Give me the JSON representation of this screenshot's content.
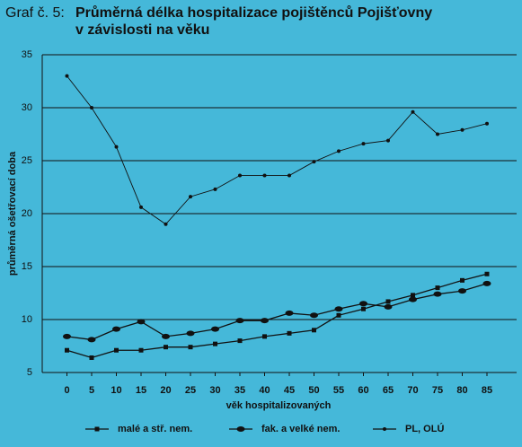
{
  "chart_data": {
    "type": "line",
    "label": "Graf č. 5:",
    "title": [
      "Průměrná délka hospitalizace pojištěnců Pojišťovny",
      "v závislosti na věku"
    ],
    "xlabel": "věk hospitalizovaných",
    "ylabel": "průměrná ošetřovací doba",
    "x": [
      0,
      5,
      10,
      15,
      20,
      25,
      30,
      35,
      40,
      45,
      50,
      55,
      60,
      65,
      70,
      75,
      80,
      85
    ],
    "xlim": [
      -5,
      91
    ],
    "xticks": [
      0,
      5,
      10,
      15,
      20,
      25,
      30,
      35,
      40,
      45,
      50,
      55,
      60,
      65,
      70,
      75,
      80,
      85
    ],
    "ylim": [
      5,
      35
    ],
    "yticks": [
      5,
      10,
      15,
      20,
      25,
      30,
      35
    ],
    "grid": true,
    "legend": "bottom",
    "series": [
      {
        "name": "malé a stř. nem.",
        "color": "#111111",
        "marker": "square",
        "values": [
          7.1,
          6.4,
          7.1,
          7.1,
          7.4,
          7.4,
          7.7,
          8.0,
          8.4,
          8.7,
          9.0,
          10.4,
          11.0,
          11.7,
          12.3,
          13.0,
          13.7,
          14.3
        ]
      },
      {
        "name": "fak. a velké nem.",
        "color": "#111111",
        "marker": "oval",
        "values": [
          8.4,
          8.1,
          9.1,
          9.8,
          8.4,
          8.7,
          9.1,
          9.9,
          9.9,
          10.6,
          10.4,
          11.0,
          11.5,
          11.2,
          11.9,
          12.4,
          12.7,
          13.4
        ]
      },
      {
        "name": "PL, OLÚ",
        "color": "#111111",
        "marker": "dot",
        "values": [
          33,
          30,
          26.3,
          20.6,
          19,
          21.6,
          22.3,
          23.6,
          23.6,
          23.6,
          24.9,
          25.9,
          26.6,
          26.9,
          29.6,
          27.5,
          27.9,
          28.5
        ]
      }
    ]
  }
}
